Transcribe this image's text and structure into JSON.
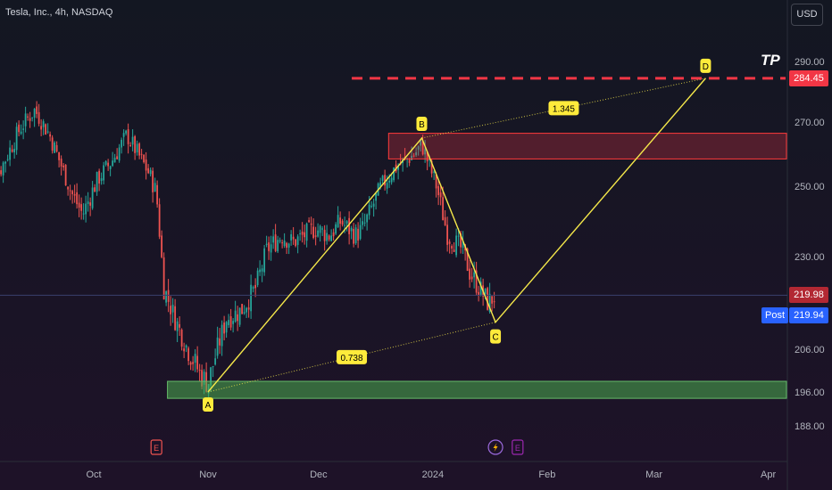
{
  "header": {
    "symbol_title": "Tesla, Inc., 4h, NASDAQ",
    "currency": "USD"
  },
  "colors": {
    "background": "#131722",
    "bull": "#26a69a",
    "bear": "#ef5350",
    "pattern": "#f5e84a",
    "zone_red": "#ff3b3b",
    "zone_green": "#4caf50",
    "tp_line": "#f23645",
    "post_badge": "#2962ff"
  },
  "chart_data": {
    "type": "candlestick",
    "title": "Tesla, Inc., 4h, NASDAQ",
    "ylim": [
      180,
      300
    ],
    "ylabel": "USD",
    "y_ticks": [
      {
        "value": 290,
        "label": "290.00"
      },
      {
        "value": 270,
        "label": "270.00"
      },
      {
        "value": 250,
        "label": "250.00"
      },
      {
        "value": 230,
        "label": "230.00"
      },
      {
        "value": 206,
        "label": "206.00"
      },
      {
        "value": 196,
        "label": "196.00"
      },
      {
        "value": 188,
        "label": "188.00"
      }
    ],
    "x_ticks": [
      {
        "label": "Oct",
        "date": "2023-10-01"
      },
      {
        "label": "Nov",
        "date": "2023-11-01"
      },
      {
        "label": "Dec",
        "date": "2023-12-01"
      },
      {
        "label": "2024",
        "date": "2024-01-01"
      },
      {
        "label": "Feb",
        "date": "2024-02-01"
      },
      {
        "label": "Mar",
        "date": "2024-03-01"
      },
      {
        "label": "Apr",
        "date": "2024-04-01"
      }
    ],
    "price_path": [
      {
        "date": "2023-09-01",
        "price": 246
      },
      {
        "date": "2023-09-06",
        "price": 256
      },
      {
        "date": "2023-09-11",
        "price": 268
      },
      {
        "date": "2023-09-15",
        "price": 274
      },
      {
        "date": "2023-09-19",
        "price": 266
      },
      {
        "date": "2023-09-25",
        "price": 248
      },
      {
        "date": "2023-09-28",
        "price": 242
      },
      {
        "date": "2023-10-02",
        "price": 252
      },
      {
        "date": "2023-10-06",
        "price": 258
      },
      {
        "date": "2023-10-10",
        "price": 266
      },
      {
        "date": "2023-10-13",
        "price": 260
      },
      {
        "date": "2023-10-16",
        "price": 254
      },
      {
        "date": "2023-10-18",
        "price": 248
      },
      {
        "date": "2023-10-20",
        "price": 222
      },
      {
        "date": "2023-10-23",
        "price": 214
      },
      {
        "date": "2023-10-26",
        "price": 207
      },
      {
        "date": "2023-10-30",
        "price": 200
      },
      {
        "date": "2023-11-01",
        "price": 198
      },
      {
        "date": "2023-11-06",
        "price": 214
      },
      {
        "date": "2023-11-10",
        "price": 216
      },
      {
        "date": "2023-11-14",
        "price": 222
      },
      {
        "date": "2023-11-17",
        "price": 232
      },
      {
        "date": "2023-11-21",
        "price": 236
      },
      {
        "date": "2023-11-24",
        "price": 234
      },
      {
        "date": "2023-11-27",
        "price": 236
      },
      {
        "date": "2023-11-30",
        "price": 238
      },
      {
        "date": "2023-12-04",
        "price": 236
      },
      {
        "date": "2023-12-07",
        "price": 240
      },
      {
        "date": "2023-12-11",
        "price": 236
      },
      {
        "date": "2023-12-13",
        "price": 238
      },
      {
        "date": "2023-12-18",
        "price": 250
      },
      {
        "date": "2023-12-22",
        "price": 256
      },
      {
        "date": "2023-12-27",
        "price": 260
      },
      {
        "date": "2023-12-29",
        "price": 263
      },
      {
        "date": "2024-01-02",
        "price": 250
      },
      {
        "date": "2024-01-05",
        "price": 236
      },
      {
        "date": "2024-01-09",
        "price": 232
      },
      {
        "date": "2024-01-11",
        "price": 226
      },
      {
        "date": "2024-01-16",
        "price": 218
      },
      {
        "date": "2024-01-18",
        "price": 219.98
      }
    ],
    "harmonic_pattern": {
      "points": [
        {
          "label": "A",
          "date": "2023-11-01",
          "price": 196
        },
        {
          "label": "B",
          "date": "2023-12-29",
          "price": 265
        },
        {
          "label": "C",
          "date": "2024-01-18",
          "price": 213
        },
        {
          "label": "D",
          "date": "2024-03-15",
          "price": 284.45
        }
      ],
      "ratios": [
        {
          "label": "0.738",
          "from": "A",
          "to": "C"
        },
        {
          "label": "1.345",
          "from": "B",
          "to": "D"
        }
      ]
    },
    "zones": [
      {
        "kind": "resistance",
        "color": "red",
        "start": "2023-12-20",
        "end": "2024-04-30",
        "from": 258.5,
        "to": 266.5
      },
      {
        "kind": "support",
        "color": "green",
        "start": "2023-10-21",
        "end": "2024-04-30",
        "from": 194.5,
        "to": 198.5
      }
    ],
    "target": {
      "label": "TP",
      "price": 284.45,
      "price_label": "284.45",
      "start": "2023-12-10"
    },
    "last_price": {
      "value": 219.98,
      "label": "219.98"
    },
    "post_price": {
      "tag": "Post",
      "value": 219.94,
      "label": "219.94"
    },
    "events": [
      {
        "kind": "earnings",
        "letter": "E",
        "date": "2023-10-18",
        "color": "#ef5350"
      },
      {
        "kind": "dividend-split",
        "icon": "lightning",
        "date": "2024-01-18",
        "color": "#9c6ade"
      },
      {
        "kind": "earnings",
        "letter": "E",
        "date": "2024-01-24",
        "color": "#9c27b0"
      }
    ]
  }
}
